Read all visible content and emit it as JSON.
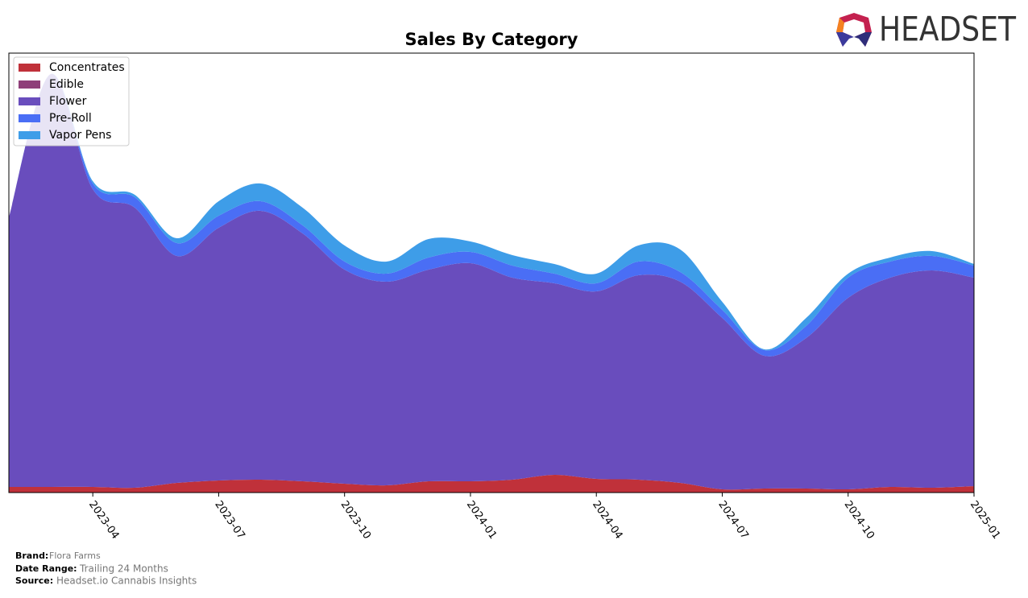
{
  "logo": "HEADSET",
  "chart_data": {
    "type": "stacked-area",
    "title": "Sales By Category",
    "x": [
      "2023-02",
      "2023-03",
      "2023-04",
      "2023-05",
      "2023-06",
      "2023-07",
      "2023-08",
      "2023-09",
      "2023-10",
      "2023-11",
      "2023-12",
      "2024-01",
      "2024-02",
      "2024-03",
      "2024-04",
      "2024-05",
      "2024-06",
      "2024-07",
      "2024-08",
      "2024-09",
      "2024-10",
      "2024-11",
      "2024-12",
      "2025-01"
    ],
    "xlim": [
      "2023-02",
      "2025-01"
    ],
    "xticks": [
      "2023-04",
      "2023-07",
      "2023-10",
      "2024-01",
      "2024-04",
      "2024-07",
      "2024-10",
      "2025-01"
    ],
    "ylim": [
      0,
      546
    ],
    "legend": "upper left",
    "series": [
      {
        "name": "Concentrates",
        "color": "#c0313a",
        "values": [
          7,
          7,
          7,
          6,
          12,
          15,
          16,
          14,
          11,
          9,
          14,
          14,
          16,
          22,
          17,
          16,
          12,
          4,
          5,
          5,
          4,
          7,
          6,
          8
        ]
      },
      {
        "name": "Edible",
        "color": "#8f3f79",
        "values": [
          0,
          0,
          0,
          0,
          0,
          0,
          0,
          0,
          0,
          0,
          0,
          0,
          0,
          0,
          0,
          0,
          0,
          0,
          0,
          0,
          0,
          0,
          0,
          0
        ]
      },
      {
        "name": "Flower",
        "color": "#694dbd",
        "values": [
          335,
          513,
          370,
          348,
          282,
          314,
          334,
          308,
          266,
          253,
          263,
          271,
          251,
          238,
          233,
          254,
          250,
          213,
          165,
          187,
          238,
          260,
          270,
          259
        ]
      },
      {
        "name": "Pre-Roll",
        "color": "#4a6ef5",
        "values": [
          0,
          0,
          7,
          13,
          16,
          15,
          12,
          10,
          10,
          10,
          15,
          14,
          15,
          12,
          10,
          17,
          12,
          10,
          7,
          15,
          25,
          20,
          18,
          15
        ]
      },
      {
        "name": "Vapor Pens",
        "color": "#3e9de8",
        "values": [
          0,
          0,
          3,
          3,
          6,
          18,
          22,
          22,
          20,
          15,
          23,
          13,
          13,
          12,
          12,
          20,
          28,
          10,
          1,
          10,
          5,
          5,
          6,
          2
        ]
      }
    ]
  },
  "footer": {
    "brand_label": "Brand:",
    "brand": "Flora Farms",
    "range_label": "Date Range:",
    "range": "Trailing 24 Months",
    "source_label": "Source:",
    "source": "Headset.io Cannabis Insights"
  }
}
